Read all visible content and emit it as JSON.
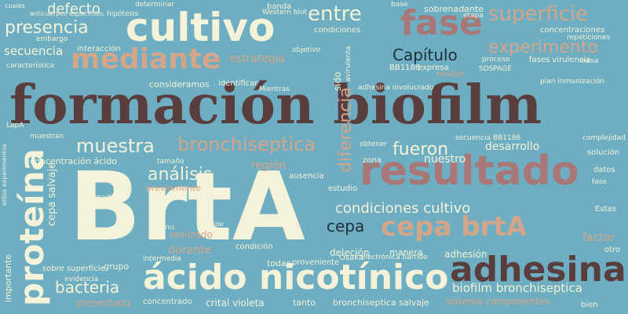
{
  "background_color": "#6eaec2",
  "palette": {
    "dark": "#5a3d3d",
    "rose": "#a87878",
    "salmon": "#d4a589",
    "cream": "#f4f2d8",
    "navy": "#1f2f36",
    "faint": "#9fc4d2"
  },
  "words": [
    {
      "text": "formación biofilm",
      "color": "dark",
      "size": 68
    },
    {
      "text": "BrtA",
      "color": "cream",
      "size": 120
    },
    {
      "text": "resultado",
      "color": "rose",
      "size": 52
    },
    {
      "text": "cultivo",
      "color": "cream",
      "size": 50
    },
    {
      "text": "ácido nicotínico",
      "color": "cream",
      "size": 44
    },
    {
      "text": "adhesina",
      "color": "dark",
      "size": 44
    },
    {
      "text": "proteína",
      "color": "cream",
      "size": 42
    },
    {
      "text": "fase",
      "color": "rose",
      "size": 44
    },
    {
      "text": "mediante",
      "color": "salmon",
      "size": 36
    },
    {
      "text": "cepa brtA",
      "color": "salmon",
      "size": 34
    },
    {
      "text": "superficie",
      "color": "salmon",
      "size": 26
    },
    {
      "text": "entre",
      "color": "cream",
      "size": 26
    },
    {
      "text": "bronchiseptica",
      "color": "salmon",
      "size": 24
    },
    {
      "text": "muestra",
      "color": "cream",
      "size": 24
    },
    {
      "text": "presencia",
      "color": "cream",
      "size": 22
    },
    {
      "text": "experimento",
      "color": "salmon",
      "size": 22
    },
    {
      "text": "análisis",
      "color": "cream",
      "size": 22
    },
    {
      "text": "fueron",
      "color": "cream",
      "size": 22
    },
    {
      "text": "condiciones cultivo",
      "color": "cream",
      "size": 18
    },
    {
      "text": "bacteria",
      "color": "cream",
      "size": 20
    },
    {
      "text": "Capítulo",
      "color": "navy",
      "size": 20
    },
    {
      "text": "cepa",
      "color": "navy",
      "size": 20
    },
    {
      "text": "defecto",
      "color": "cream",
      "size": 18
    },
    {
      "text": "secuencia",
      "color": "cream",
      "size": 15
    },
    {
      "text": "biofilm bronchiseptica",
      "color": "cream",
      "size": 15
    },
    {
      "text": "estrategia",
      "color": "salmon",
      "size": 14
    },
    {
      "text": "diferencia",
      "color": "salmon",
      "size": 22
    },
    {
      "text": "desarrollo",
      "color": "cream",
      "size": 14
    },
    {
      "text": "nuestro",
      "color": "cream",
      "size": 14
    },
    {
      "text": "región",
      "color": "salmon",
      "size": 14
    },
    {
      "text": "adhesión",
      "color": "cream",
      "size": 12
    },
    {
      "text": "sistema componentes",
      "color": "salmon",
      "size": 12
    },
    {
      "text": "previamente",
      "color": "salmon",
      "size": 11
    },
    {
      "text": "cepa salvaje",
      "color": "cream",
      "size": 13
    },
    {
      "text": "realizado",
      "color": "salmon",
      "size": 12
    },
    {
      "text": "factor",
      "color": "salmon",
      "size": 14
    },
    {
      "text": "crital violeta",
      "color": "cream",
      "size": 12
    },
    {
      "text": "tanto",
      "color": "cream",
      "size": 11
    },
    {
      "text": "bronchiseptica salvaje",
      "color": "cream",
      "size": 11
    },
    {
      "text": "importante",
      "color": "cream",
      "size": 11
    },
    {
      "text": "concentrado",
      "color": "cream",
      "size": 10
    },
    {
      "text": "presentado",
      "color": "salmon",
      "size": 12
    },
    {
      "text": "concentración ácido",
      "color": "cream",
      "size": 11
    },
    {
      "text": "interacción",
      "color": "cream",
      "size": 10
    },
    {
      "text": "característica",
      "color": "cream",
      "size": 9
    },
    {
      "text": "consideramos",
      "color": "cream",
      "size": 11
    },
    {
      "text": "identificar",
      "color": "cream",
      "size": 10
    },
    {
      "text": "secuencia BB1186",
      "color": "cream",
      "size": 9
    },
    {
      "text": "BB1186",
      "color": "cream",
      "size": 10
    },
    {
      "text": "expresa",
      "color": "cream",
      "size": 10
    },
    {
      "text": "ensayo",
      "color": "salmon",
      "size": 10
    },
    {
      "text": "proceso",
      "color": "cream",
      "size": 9
    },
    {
      "text": "fases virulencia",
      "color": "cream",
      "size": 10
    },
    {
      "text": "masa",
      "color": "cream",
      "size": 9
    },
    {
      "text": "SDSPAGE",
      "color": "cream",
      "size": 9
    },
    {
      "text": "plan inmunización",
      "color": "cream",
      "size": 9
    },
    {
      "text": "concentraciones",
      "color": "cream",
      "size": 10
    },
    {
      "text": "sobrenadante",
      "color": "cream",
      "size": 11
    },
    {
      "text": "etapa",
      "color": "cream",
      "size": 9
    },
    {
      "text": "repeticiones",
      "color": "cream",
      "size": 9
    },
    {
      "text": "solución",
      "color": "cream",
      "size": 10
    },
    {
      "text": "complejidad",
      "color": "cream",
      "size": 9
    },
    {
      "text": "obtener",
      "color": "cream",
      "size": 9
    },
    {
      "text": "zona",
      "color": "cream",
      "size": 10
    },
    {
      "text": "estudio",
      "color": "cream",
      "size": 10
    },
    {
      "text": "ausencia",
      "color": "cream",
      "size": 10
    },
    {
      "text": "deleción",
      "color": "cream",
      "size": 12
    },
    {
      "text": "manera",
      "color": "cream",
      "size": 11
    },
    {
      "text": "Osaka",
      "color": "cream",
      "size": 10
    },
    {
      "text": "electrónica barrido",
      "color": "cream",
      "size": 9
    },
    {
      "text": "todas",
      "color": "cream",
      "size": 11
    },
    {
      "text": "proveniente",
      "color": "cream",
      "size": 10
    },
    {
      "text": "grupo",
      "color": "cream",
      "size": 11
    },
    {
      "text": "durante",
      "color": "salmon",
      "size": 14
    },
    {
      "text": "condición",
      "color": "cream",
      "size": 10
    },
    {
      "text": "intermedia",
      "color": "cream",
      "size": 9
    },
    {
      "text": "sobre superficie",
      "color": "cream",
      "size": 10
    },
    {
      "text": "evidencia",
      "color": "cream",
      "size": 9
    },
    {
      "text": "formado",
      "color": "cream",
      "size": 9
    },
    {
      "text": "tamaño",
      "color": "cream",
      "size": 9
    },
    {
      "text": "filtros",
      "color": "cream",
      "size": 8
    },
    {
      "text": "analizar",
      "color": "cream",
      "size": 8
    },
    {
      "text": "banda",
      "color": "cream",
      "size": 10
    },
    {
      "text": "determinar",
      "color": "cream",
      "size": 9
    },
    {
      "text": "objetivo",
      "color": "cream",
      "size": 9
    },
    {
      "text": "avirulenta",
      "color": "cream",
      "size": 9
    },
    {
      "text": "LapA",
      "color": "cream",
      "size": 9
    },
    {
      "text": "Estas",
      "color": "cream",
      "size": 10
    },
    {
      "text": "otro",
      "color": "cream",
      "size": 10
    },
    {
      "text": "bien",
      "color": "cream",
      "size": 10
    },
    {
      "text": "datos",
      "color": "cream",
      "size": 10
    },
    {
      "text": "fase",
      "color": "cream",
      "size": 9
    },
    {
      "text": "muestran",
      "color": "cream",
      "size": 9
    },
    {
      "text": "Western blot",
      "color": "cream",
      "size": 9
    },
    {
      "text": "hipótesis",
      "color": "cream",
      "size": 9
    },
    {
      "text": "cuales",
      "color": "cream",
      "size": 8
    },
    {
      "text": "anticuerpos específicos",
      "color": "cream",
      "size": 8
    },
    {
      "text": "embargo",
      "color": "cream",
      "size": 9
    },
    {
      "text": "adhesina involucrado",
      "color": "cream",
      "size": 9
    },
    {
      "text": "estos experimentos",
      "color": "cream",
      "size": 8
    },
    {
      "text": "base",
      "color": "cream",
      "size": 9
    },
    {
      "text": "condiciones",
      "color": "cream",
      "size": 10
    },
    {
      "text": "Mientras",
      "color": "cream",
      "size": 9
    },
    {
      "text": "sido",
      "color": "cream",
      "size": 12
    }
  ]
}
